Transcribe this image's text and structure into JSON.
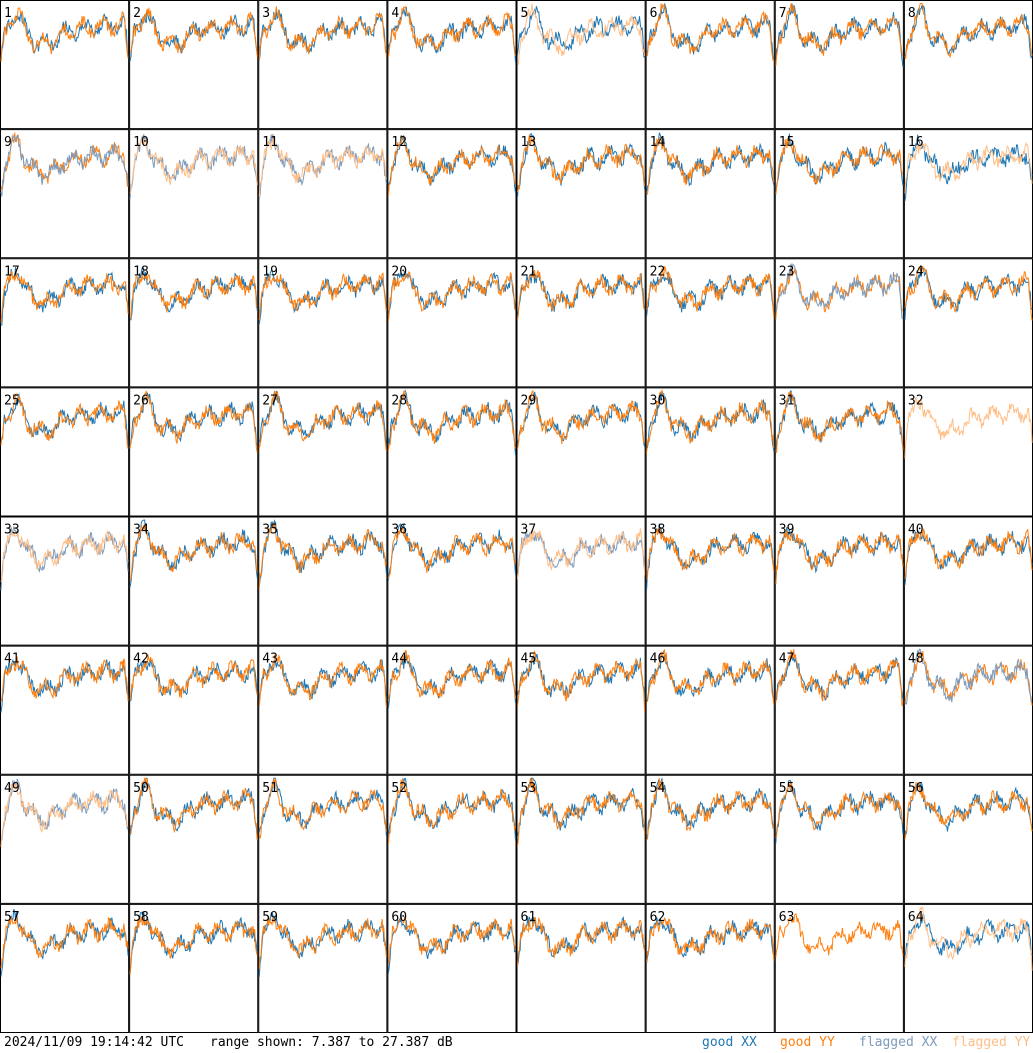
{
  "chart_data": {
    "type": "line",
    "layout": "8x8 small multiples",
    "panels": [
      "1",
      "2",
      "3",
      "4",
      "5",
      "6",
      "7",
      "8",
      "9",
      "10",
      "11",
      "12",
      "13",
      "14",
      "15",
      "16",
      "17",
      "18",
      "19",
      "20",
      "21",
      "22",
      "23",
      "24",
      "25",
      "26",
      "27",
      "28",
      "29",
      "30",
      "31",
      "32",
      "33",
      "34",
      "35",
      "36",
      "37",
      "38",
      "39",
      "40",
      "41",
      "42",
      "43",
      "44",
      "45",
      "46",
      "47",
      "48",
      "49",
      "50",
      "51",
      "52",
      "53",
      "54",
      "55",
      "56",
      "57",
      "58",
      "59",
      "60",
      "61",
      "62",
      "63",
      "64"
    ],
    "ylim_db": [
      7.387,
      27.387
    ],
    "series": [
      {
        "name": "good XX",
        "color": "#1f77b4"
      },
      {
        "name": "good YY",
        "color": "#ff7f0e"
      },
      {
        "name": "flagged XX",
        "color": "#7c9bbd"
      },
      {
        "name": "flagged YY",
        "color": "#ffbe86"
      }
    ],
    "panel_series": {
      "good_xx": [
        1,
        2,
        3,
        4,
        5,
        6,
        7,
        8,
        12,
        13,
        14,
        15,
        16,
        17,
        18,
        19,
        20,
        21,
        22,
        24,
        25,
        26,
        27,
        28,
        29,
        30,
        31,
        34,
        35,
        36,
        38,
        39,
        40,
        41,
        42,
        43,
        44,
        45,
        46,
        47,
        50,
        51,
        52,
        53,
        54,
        55,
        56,
        57,
        58,
        59,
        60,
        61,
        62,
        64
      ],
      "good_yy": [
        1,
        2,
        3,
        4,
        6,
        7,
        8,
        9,
        12,
        13,
        14,
        15,
        17,
        18,
        19,
        20,
        21,
        22,
        23,
        24,
        25,
        26,
        27,
        28,
        29,
        30,
        31,
        34,
        35,
        36,
        38,
        39,
        40,
        41,
        42,
        43,
        44,
        45,
        46,
        47,
        48,
        50,
        51,
        52,
        53,
        54,
        55,
        56,
        57,
        58,
        59,
        60,
        61,
        62,
        63
      ],
      "flagged_xx": [
        9,
        10,
        11,
        23,
        33,
        37,
        48,
        49
      ],
      "flagged_yy": [
        5,
        10,
        11,
        16,
        32,
        33,
        37,
        49,
        64
      ]
    }
  },
  "footer": {
    "timestamp": "2024/11/09 19:14:42 UTC",
    "range": "range shown: 7.387 to 27.387 dB",
    "legend": [
      "good XX",
      "good YY",
      "flagged XX",
      "flagged YY"
    ]
  }
}
